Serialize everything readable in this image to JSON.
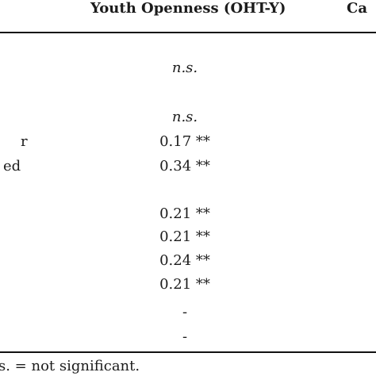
{
  "table": {
    "headers": {
      "col_youth": "Youth Openness (OHT-Y)",
      "col_next_partial": "Ca"
    },
    "row_labels_partial": [
      {
        "text": "r"
      },
      {
        "text": "ed"
      }
    ],
    "youth_values": [
      "n.s.",
      "n.s.",
      "0.17 **",
      "0.34 **",
      "0.21 **",
      "0.21 **",
      "0.24 **",
      "0.21 **",
      "-",
      "-"
    ],
    "footnote": "s. = not significant."
  }
}
